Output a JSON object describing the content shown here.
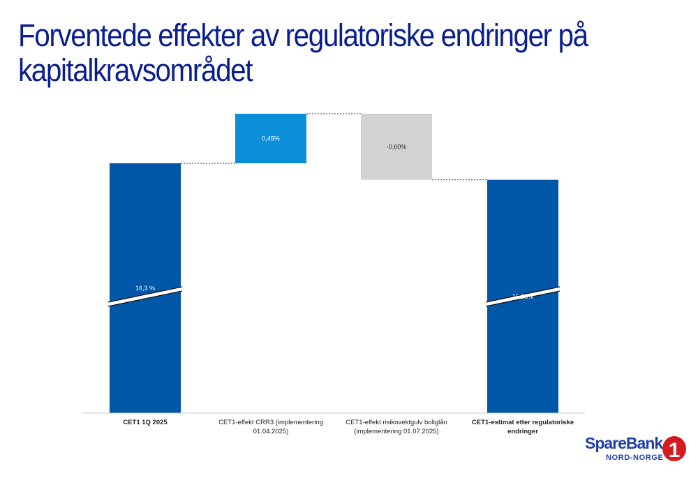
{
  "title": "Forventede effekter av regulatoriske endringer på kapitalkravsområdet",
  "logo": {
    "name": "SpareBank",
    "region": "NORD-NORGE",
    "digit": "1"
  },
  "colors": {
    "title": "#0a1f8f",
    "total_bar": "#0057a8",
    "increase_bar": "#0a8fd8",
    "decrease_bar": "#d3d3d3",
    "logo": "#1e3fa8",
    "logo_badge": "#d71920"
  },
  "chart_data": {
    "type": "bar",
    "subtype": "waterfall",
    "categories": [
      "CET1 1Q 2025",
      "CET1-effekt CRR3 (implementering 01.04.2025)",
      "CET1-effekt risikovektgulv boliglån (implementering 01.07.2025)",
      "CET1-estimat etter regulatoriske endringer"
    ],
    "category_lines": [
      [
        "CET1 1Q 2025"
      ],
      [
        "CET1-effekt CRR3 (implementering",
        "01.04.2025)"
      ],
      [
        "CET1-effekt risikovektgulv boliglån",
        "(implementering 01.07.2025)"
      ],
      [
        "CET1-estimat etter regulatoriske",
        "endringer"
      ]
    ],
    "bold_categories": [
      true,
      false,
      false,
      true
    ],
    "bar_kinds": [
      "total",
      "increase",
      "decrease",
      "total"
    ],
    "values": [
      16.3,
      0.45,
      -0.6,
      16.15
    ],
    "data_labels": [
      "16,3 %",
      "0,45%",
      "-0,60%",
      "16,15%"
    ],
    "broken_axis": true,
    "grid": false,
    "legend": "none"
  }
}
